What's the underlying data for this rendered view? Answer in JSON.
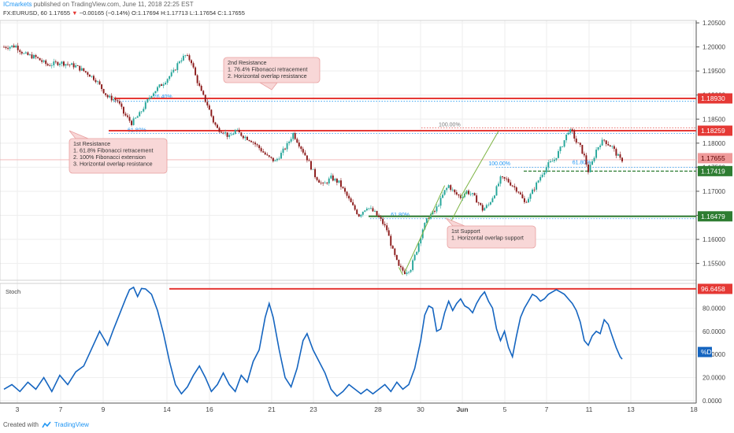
{
  "header": {
    "author": "ICmarkets",
    "published_text": "published on TradingView.com, June 11, 2018 22:25 EST",
    "symbol_line_prefix": "FX:EURUSD, 60",
    "last_price": "1.17655",
    "down_arrow": "▼",
    "change": "−0.00165 (−0.14%)",
    "ohlc": "O:1.17694 H:1.17713 L:1.17654 C:1.17655"
  },
  "footer": {
    "created_with": "Created with",
    "brand": "TradingView"
  },
  "colors": {
    "candle_up": "#26a69a",
    "candle_down": "#8b1a1a",
    "resistance": "#e53935",
    "support": "#2e7d32",
    "stoch_line": "#1565c0",
    "note_bg": "#f8d7d7",
    "note_border": "#e8a0a0",
    "fib": "#2196f3"
  },
  "chart_data": [
    {
      "type": "line",
      "subtype": "candlestick",
      "symbol": "FX:EURUSD",
      "timeframe": "60",
      "x_ticks": [
        "3",
        "7",
        "9",
        "14",
        "16",
        "21",
        "23",
        "28",
        "30",
        "Jun",
        "5",
        "7",
        "11",
        "13",
        "18"
      ],
      "y_ticks": [
        "1.20500",
        "1.20000",
        "1.19500",
        "1.19000",
        "1.18500",
        "1.18000",
        "1.17500",
        "1.17000",
        "1.16500",
        "1.16000",
        "1.15500"
      ],
      "ylim": [
        1.1515,
        1.2055
      ],
      "price_path": [
        [
          0,
          1.2
        ],
        [
          6,
          1.2002
        ],
        [
          10,
          1.1985
        ],
        [
          16,
          1.1978
        ],
        [
          22,
          1.1962
        ],
        [
          28,
          1.1968
        ],
        [
          36,
          1.196
        ],
        [
          42,
          1.1945
        ],
        [
          46,
          1.1932
        ],
        [
          52,
          1.1896
        ],
        [
          57,
          1.1888
        ],
        [
          60,
          1.1862
        ],
        [
          64,
          1.1842
        ],
        [
          68,
          1.186
        ],
        [
          74,
          1.1902
        ],
        [
          80,
          1.1926
        ],
        [
          85,
          1.1948
        ],
        [
          88,
          1.1972
        ],
        [
          91,
          1.1982
        ],
        [
          94,
          1.197
        ],
        [
          96,
          1.194
        ],
        [
          99,
          1.1905
        ],
        [
          102,
          1.188
        ],
        [
          105,
          1.1845
        ],
        [
          107,
          1.183
        ],
        [
          110,
          1.1825
        ],
        [
          113,
          1.1812
        ],
        [
          116,
          1.1826
        ],
        [
          120,
          1.1815
        ],
        [
          124,
          1.1806
        ],
        [
          128,
          1.179
        ],
        [
          132,
          1.1772
        ],
        [
          136,
          1.1762
        ],
        [
          139,
          1.1778
        ],
        [
          142,
          1.1796
        ],
        [
          145,
          1.182
        ],
        [
          148,
          1.1798
        ],
        [
          152,
          1.1768
        ],
        [
          156,
          1.1732
        ],
        [
          160,
          1.1712
        ],
        [
          164,
          1.1728
        ],
        [
          168,
          1.1718
        ],
        [
          172,
          1.169
        ],
        [
          175,
          1.1668
        ],
        [
          178,
          1.165
        ],
        [
          182,
          1.1668
        ],
        [
          186,
          1.1655
        ],
        [
          189,
          1.164
        ],
        [
          192,
          1.162
        ],
        [
          195,
          1.1576
        ],
        [
          198,
          1.1542
        ],
        [
          201,
          1.1532
        ],
        [
          204,
          1.154
        ],
        [
          207,
          1.1578
        ],
        [
          210,
          1.1622
        ],
        [
          213,
          1.1648
        ],
        [
          216,
          1.1658
        ],
        [
          219,
          1.1682
        ],
        [
          221,
          1.17
        ],
        [
          223,
          1.1712
        ],
        [
          226,
          1.1696
        ],
        [
          229,
          1.1688
        ],
        [
          232,
          1.17
        ],
        [
          235,
          1.1692
        ],
        [
          238,
          1.1676
        ],
        [
          240,
          1.1662
        ],
        [
          243,
          1.1672
        ],
        [
          246,
          1.1696
        ],
        [
          249,
          1.1726
        ],
        [
          252,
          1.1724
        ],
        [
          255,
          1.1712
        ],
        [
          258,
          1.17
        ],
        [
          261,
          1.1676
        ],
        [
          264,
          1.1692
        ],
        [
          267,
          1.1715
        ],
        [
          270,
          1.1738
        ],
        [
          273,
          1.1756
        ],
        [
          276,
          1.1766
        ],
        [
          279,
          1.1788
        ],
        [
          281,
          1.1806
        ],
        [
          283,
          1.1826
        ],
        [
          285,
          1.1822
        ],
        [
          287,
          1.1802
        ],
        [
          289,
          1.1792
        ],
        [
          291,
          1.1772
        ],
        [
          293,
          1.1742
        ],
        [
          295,
          1.176
        ],
        [
          297,
          1.1786
        ],
        [
          299,
          1.18
        ],
        [
          301,
          1.1806
        ],
        [
          303,
          1.1798
        ],
        [
          305,
          1.1792
        ],
        [
          307,
          1.1778
        ],
        [
          309,
          1.1766
        ],
        [
          310,
          1.17655
        ]
      ],
      "stoch_ticks": [
        "80.0000",
        "60.0000",
        "40.0000",
        "20.0000",
        "0.0000"
      ],
      "stoch_ylim": [
        -2,
        100
      ],
      "stoch_series_name": "%D",
      "stoch_path": [
        [
          0,
          10
        ],
        [
          4,
          14
        ],
        [
          8,
          8
        ],
        [
          12,
          16
        ],
        [
          16,
          10
        ],
        [
          20,
          20
        ],
        [
          24,
          8
        ],
        [
          28,
          22
        ],
        [
          32,
          14
        ],
        [
          36,
          25
        ],
        [
          40,
          30
        ],
        [
          44,
          45
        ],
        [
          48,
          60
        ],
        [
          52,
          48
        ],
        [
          55,
          62
        ],
        [
          58,
          75
        ],
        [
          61,
          88
        ],
        [
          63,
          96
        ],
        [
          65,
          98
        ],
        [
          67,
          90
        ],
        [
          69,
          97
        ],
        [
          71,
          96.6
        ],
        [
          74,
          92
        ],
        [
          77,
          78
        ],
        [
          80,
          58
        ],
        [
          83,
          34
        ],
        [
          86,
          14
        ],
        [
          89,
          6
        ],
        [
          92,
          12
        ],
        [
          95,
          22
        ],
        [
          98,
          30
        ],
        [
          101,
          20
        ],
        [
          104,
          8
        ],
        [
          107,
          14
        ],
        [
          110,
          24
        ],
        [
          113,
          14
        ],
        [
          116,
          8
        ],
        [
          119,
          22
        ],
        [
          122,
          16
        ],
        [
          125,
          34
        ],
        [
          128,
          44
        ],
        [
          131,
          72
        ],
        [
          133,
          84
        ],
        [
          135,
          72
        ],
        [
          138,
          44
        ],
        [
          141,
          20
        ],
        [
          144,
          12
        ],
        [
          147,
          28
        ],
        [
          150,
          52
        ],
        [
          152,
          58
        ],
        [
          155,
          44
        ],
        [
          158,
          34
        ],
        [
          161,
          24
        ],
        [
          164,
          10
        ],
        [
          167,
          4
        ],
        [
          170,
          8
        ],
        [
          173,
          14
        ],
        [
          176,
          10
        ],
        [
          179,
          6
        ],
        [
          182,
          10
        ],
        [
          185,
          6
        ],
        [
          188,
          10
        ],
        [
          191,
          14
        ],
        [
          194,
          8
        ],
        [
          197,
          16
        ],
        [
          200,
          10
        ],
        [
          203,
          14
        ],
        [
          206,
          28
        ],
        [
          209,
          52
        ],
        [
          211,
          74
        ],
        [
          213,
          82
        ],
        [
          215,
          80
        ],
        [
          217,
          60
        ],
        [
          219,
          62
        ],
        [
          221,
          76
        ],
        [
          223,
          86
        ],
        [
          225,
          78
        ],
        [
          227,
          84
        ],
        [
          229,
          88
        ],
        [
          231,
          82
        ],
        [
          233,
          80
        ],
        [
          235,
          76
        ],
        [
          237,
          84
        ],
        [
          239,
          90
        ],
        [
          241,
          94
        ],
        [
          243,
          86
        ],
        [
          245,
          80
        ],
        [
          247,
          62
        ],
        [
          249,
          52
        ],
        [
          251,
          60
        ],
        [
          253,
          46
        ],
        [
          255,
          38
        ],
        [
          257,
          56
        ],
        [
          259,
          72
        ],
        [
          261,
          80
        ],
        [
          263,
          86
        ],
        [
          265,
          92
        ],
        [
          267,
          90
        ],
        [
          269,
          86
        ],
        [
          271,
          88
        ],
        [
          273,
          92
        ],
        [
          275,
          94
        ],
        [
          277,
          96
        ],
        [
          279,
          94
        ],
        [
          281,
          92
        ],
        [
          283,
          88
        ],
        [
          285,
          84
        ],
        [
          287,
          78
        ],
        [
          289,
          68
        ],
        [
          291,
          52
        ],
        [
          293,
          48
        ],
        [
          295,
          56
        ],
        [
          297,
          60
        ],
        [
          299,
          58
        ],
        [
          301,
          70
        ],
        [
          303,
          66
        ],
        [
          305,
          56
        ],
        [
          307,
          46
        ],
        [
          309,
          38
        ],
        [
          310,
          36
        ]
      ]
    }
  ],
  "levels": [
    {
      "label": "1.18930",
      "value": 1.1893,
      "kind": "resistance"
    },
    {
      "label": "1.18259",
      "value": 1.18259,
      "kind": "resistance"
    },
    {
      "label": "1.17419",
      "value": 1.17419,
      "kind": "support-dashed"
    },
    {
      "label": "1.16479",
      "value": 1.16479,
      "kind": "support"
    }
  ],
  "current_price_label": "1.17655",
  "stoch_level_label": "96.6458",
  "stoch_title": "Stoch",
  "fib_labels": [
    {
      "text": "76.40%",
      "x": 75,
      "y": 1.189
    },
    {
      "text": "61.80%",
      "x": 62,
      "y": 1.182
    },
    {
      "text": "100.00%",
      "x": 218,
      "y": 1.1832
    },
    {
      "text": "61.80%",
      "x": 285,
      "y": 1.1753
    },
    {
      "text": "61.80%",
      "x": 194,
      "y": 1.1644
    },
    {
      "text": "100.00%",
      "x": 243,
      "y": 1.1751
    }
  ],
  "notes": {
    "resistance2": [
      "2nd Resistance",
      "1. 76.4% Fibonacci retracement",
      "2. Horizontal overlap resistance"
    ],
    "resistance1": [
      "1st Resistance",
      "1. 61.8% Fibonacci retracement",
      "2. 100% Fibonacci extension",
      "3. Horizontal overlap resistance"
    ],
    "support1": [
      "1st Support",
      "1. Horizontal overlap support"
    ]
  }
}
